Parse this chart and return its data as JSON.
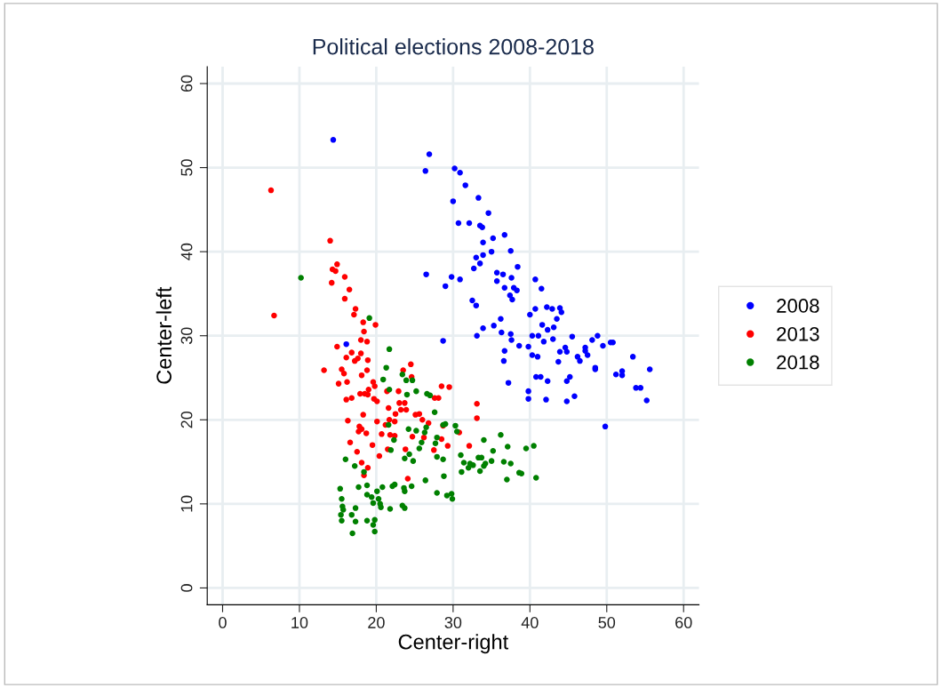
{
  "chart_data": {
    "type": "scatter",
    "title": "Political elections 2008-2018",
    "xlabel": "Center-right",
    "ylabel": "Center-left",
    "xlim": [
      -2,
      62
    ],
    "ylim": [
      -2,
      62
    ],
    "xticks": [
      0,
      10,
      20,
      30,
      40,
      50,
      60
    ],
    "yticks": [
      0,
      10,
      20,
      30,
      40,
      50,
      60
    ],
    "grid": true,
    "legend": "right",
    "marker": "circle",
    "series": [
      {
        "name": "2008",
        "color": "#0000ff",
        "x": [
          26.9,
          26.4,
          30.2,
          30.9,
          31.6,
          30.0,
          33.3,
          34.6,
          30.7,
          32.1,
          33.5,
          33.8,
          36.7,
          35.2,
          33.9,
          37.5,
          35.0,
          33.9,
          33.0,
          33.5,
          32.7,
          38.4,
          35.7,
          36.5,
          26.5,
          29.8,
          30.9,
          35.7,
          37.6,
          40.7,
          29.0,
          36.7,
          37.9,
          38.3,
          37.4,
          37.7,
          41.5,
          32.5,
          33.0,
          40.7,
          42.2,
          42.9,
          43.9,
          44.1,
          40.0,
          43.5,
          36.2,
          41.6,
          35.3,
          33.9,
          42.3,
          43.1,
          36.3,
          33.1,
          37.5,
          40.3,
          41.1,
          45.5,
          48.8,
          37.6,
          41.8,
          43.0,
          38.6,
          39.8,
          44.6,
          47.2,
          48.1,
          49.5,
          50.5,
          50.8,
          36.7,
          43.9,
          44.8,
          47.2,
          47.5,
          40.3,
          41.0,
          46.2,
          46.5,
          53.4,
          36.6,
          43.7,
          48.5,
          48.5,
          55.6,
          52.0,
          51.2,
          52.0,
          40.8,
          41.4,
          45.2,
          42.3,
          44.8,
          37.2,
          53.8,
          54.4,
          39.8,
          39.8,
          42.1,
          44.8,
          45.8,
          55.2,
          28.7,
          49.8,
          14.4,
          16.1
        ],
        "values": [
          51.6,
          49.6,
          49.9,
          49.4,
          47.9,
          46.0,
          46.4,
          44.6,
          43.4,
          43.4,
          43.1,
          42.9,
          42.0,
          41.6,
          41.1,
          40.1,
          40.0,
          39.6,
          39.3,
          38.6,
          38.0,
          38.2,
          37.5,
          37.3,
          37.3,
          37.0,
          36.7,
          36.5,
          36.9,
          36.7,
          35.9,
          35.7,
          35.7,
          35.4,
          34.8,
          34.3,
          35.6,
          34.2,
          33.6,
          33.2,
          33.4,
          33.2,
          33.3,
          32.8,
          32.5,
          32.0,
          32.0,
          31.3,
          31.2,
          30.9,
          30.7,
          31.0,
          30.4,
          30.0,
          30.2,
          30.0,
          30.0,
          29.9,
          30.0,
          29.5,
          29.3,
          29.6,
          28.8,
          28.7,
          28.6,
          28.6,
          29.5,
          28.8,
          29.2,
          29.2,
          28.2,
          28.1,
          28.1,
          28.2,
          27.7,
          27.7,
          27.5,
          27.5,
          27.0,
          27.5,
          27.0,
          26.9,
          26.2,
          26.0,
          26.0,
          25.8,
          25.4,
          25.3,
          25.1,
          25.1,
          25.1,
          24.6,
          24.6,
          24.4,
          23.8,
          23.8,
          23.4,
          22.5,
          22.4,
          22.2,
          22.8,
          22.3,
          29.4,
          19.2,
          53.3,
          29.0
        ]
      },
      {
        "name": "2013",
        "color": "#ff0000",
        "x": [
          6.3,
          14.0,
          14.9,
          14.3,
          14.7,
          15.9,
          14.2,
          16.5,
          15.9,
          17.3,
          17.1,
          6.7,
          18.3,
          19.9,
          18.4,
          18.0,
          18.8,
          14.9,
          16.8,
          18.0,
          16.1,
          17.6,
          17.2,
          18.9,
          24.5,
          13.2,
          15.5,
          18.8,
          23.5,
          15.8,
          18.1,
          24.6,
          15.1,
          16.2,
          19.6,
          19.8,
          19.0,
          28.5,
          29.5,
          17.9,
          18.5,
          18.9,
          21.4,
          22.9,
          16.1,
          16.8,
          19.7,
          20.1,
          27.6,
          28.1,
          21.6,
          23.0,
          23.7,
          23.2,
          23.9,
          22.5,
          25.1,
          25.6,
          26.0,
          18.3,
          16.3,
          20.1,
          21.7,
          22.4,
          21.2,
          17.8,
          18.1,
          17.7,
          18.7,
          20.7,
          21.8,
          22.4,
          24.7,
          26.2,
          26.8,
          28.7,
          30.8,
          28.5,
          16.6,
          19.5,
          21.5,
          23.8,
          27.5,
          29.3,
          17.5,
          20.4,
          18.1,
          18.9,
          18.4,
          24.1,
          32.1,
          33.1,
          33.1
        ],
        "values": [
          47.3,
          41.3,
          38.5,
          37.9,
          37.7,
          37.0,
          36.3,
          35.5,
          34.4,
          33.2,
          32.5,
          32.4,
          31.6,
          31.3,
          30.5,
          29.5,
          29.3,
          28.7,
          28.0,
          27.9,
          27.4,
          27.3,
          27.0,
          27.1,
          26.6,
          25.9,
          26.0,
          25.9,
          25.9,
          25.5,
          25.3,
          25.1,
          24.3,
          24.5,
          24.5,
          24.0,
          23.6,
          24.0,
          23.9,
          23.1,
          23.1,
          23.0,
          23.4,
          23.4,
          22.4,
          22.6,
          22.5,
          22.2,
          22.6,
          22.6,
          21.4,
          22.0,
          22.0,
          21.2,
          21.2,
          20.7,
          20.6,
          20.7,
          20.0,
          20.6,
          19.9,
          19.8,
          20.0,
          19.8,
          19.4,
          19.2,
          18.9,
          18.6,
          18.4,
          18.3,
          18.2,
          18.1,
          18.0,
          17.9,
          19.6,
          19.3,
          18.5,
          17.7,
          17.3,
          17.0,
          16.5,
          16.5,
          16.4,
          16.9,
          16.2,
          15.7,
          14.9,
          14.3,
          13.4,
          13.0,
          16.9,
          21.9,
          20.2
        ]
      },
      {
        "name": "2018",
        "color": "#008000",
        "x": [
          21.7,
          21.3,
          23.4,
          23.9,
          24.7,
          20.9,
          21.7,
          25.2,
          24.0,
          26.6,
          27.0,
          27.6,
          21.6,
          24.2,
          25.2,
          26.3,
          26.5,
          27.9,
          28.7,
          29.0,
          30.3,
          30.5,
          22.3,
          25.9,
          27.7,
          21.9,
          25.6,
          24.3,
          24.8,
          23.7,
          27.9,
          28.7,
          31.0,
          34.0,
          36.2,
          35.2,
          37.1,
          39.5,
          40.5,
          31.4,
          32.2,
          32.0,
          32.6,
          33.3,
          33.7,
          34.2,
          34.0,
          33.5,
          35.0,
          36.6,
          37.5,
          38.6,
          38.9,
          37.0,
          40.8,
          31.1,
          28.8,
          26.4,
          27.9,
          29.2,
          29.8,
          29.9,
          16.0,
          17.2,
          18.4,
          15.3,
          17.7,
          18.8,
          20.1,
          20.8,
          22.1,
          22.4,
          23.6,
          24.6,
          23.7,
          18.8,
          19.4,
          20.3,
          15.5,
          19.6,
          20.5,
          15.6,
          17.3,
          15.7,
          15.4,
          16.8,
          20.6,
          21.8,
          23.4,
          23.7,
          15.5,
          17.3,
          18.8,
          19.8,
          19.6,
          19.8,
          16.9,
          10.2,
          19.1
        ],
        "values": [
          28.4,
          26.2,
          25.4,
          24.7,
          24.7,
          24.8,
          23.6,
          23.4,
          23.0,
          23.1,
          22.9,
          20.9,
          19.4,
          18.9,
          18.7,
          18.5,
          19.1,
          17.9,
          19.4,
          19.5,
          19.3,
          18.6,
          17.6,
          17.3,
          17.2,
          16.4,
          16.6,
          15.9,
          15.1,
          15.4,
          15.6,
          15.3,
          15.8,
          17.6,
          18.2,
          16.3,
          16.8,
          16.6,
          16.9,
          14.9,
          14.8,
          14.3,
          14.6,
          15.5,
          15.5,
          14.8,
          14.5,
          13.9,
          15.1,
          15.0,
          14.8,
          13.7,
          13.6,
          12.9,
          13.1,
          13.8,
          13.3,
          12.8,
          11.3,
          11.0,
          11.2,
          10.6,
          15.3,
          14.5,
          13.8,
          11.8,
          12.0,
          12.2,
          11.5,
          12.0,
          12.1,
          12.3,
          11.9,
          12.1,
          11.5,
          11.1,
          10.8,
          10.6,
          10.6,
          10.1,
          10.0,
          9.7,
          9.5,
          9.3,
          8.7,
          8.7,
          9.6,
          9.4,
          9.8,
          9.5,
          8.0,
          7.9,
          8.0,
          8.1,
          7.5,
          6.7,
          6.5,
          36.9,
          32.1
        ]
      }
    ]
  }
}
